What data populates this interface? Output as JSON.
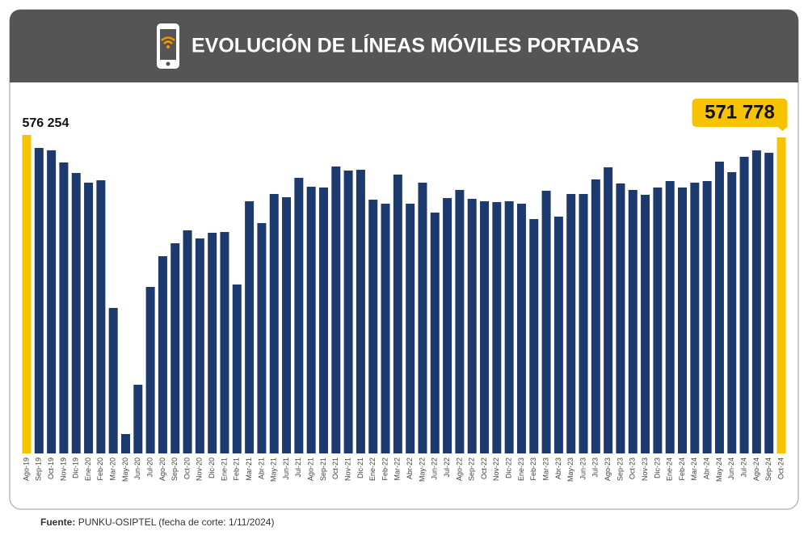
{
  "chart_data": {
    "type": "bar",
    "title": "EVOLUCIÓN DE LÍNEAS MÓVILES PORTADAS",
    "categories": [
      "Ago-19",
      "Sep-19",
      "Oct-19",
      "Nov-19",
      "Dic-19",
      "Ene-20",
      "Feb-20",
      "Mar-20",
      "May-20",
      "Jun-20",
      "Jul-20",
      "Ago-20",
      "Sep-20",
      "Oct-20",
      "Nov-20",
      "Dic-20",
      "Ene-21",
      "Feb-21",
      "Mar-21",
      "Abr-21",
      "May-21",
      "Jun-21",
      "Jul-21",
      "Ago-21",
      "Sep-21",
      "Oct-21",
      "Nov-21",
      "Dic-21",
      "Ene-22",
      "Feb-22",
      "Mar-22",
      "Abr-22",
      "May-22",
      "Jun-22",
      "Jul-22",
      "Ago-22",
      "Sep-22",
      "Oct-22",
      "Nov-22",
      "Dic-22",
      "Ene-23",
      "Feb-23",
      "Mar-23",
      "Abr-23",
      "May-23",
      "Jun-23",
      "Jul-23",
      "Ago-23",
      "Sep-23",
      "Oct-23",
      "Nov-23",
      "Dic-23",
      "Ene-24",
      "Feb-24",
      "Mar-24",
      "Abr-24",
      "May-24",
      "Jun-24",
      "Jul-24",
      "Ago-24",
      "Sep-24",
      "Oct-24"
    ],
    "values": [
      576254,
      552800,
      548400,
      526500,
      507500,
      490000,
      494300,
      263300,
      35100,
      124300,
      301300,
      356900,
      380300,
      403700,
      389000,
      399300,
      400700,
      305700,
      456300,
      416800,
      469500,
      463600,
      498700,
      482600,
      481200,
      519200,
      511900,
      513300,
      459200,
      451900,
      504600,
      451900,
      490000,
      435800,
      462100,
      476800,
      460700,
      456300,
      454800,
      456300,
      451900,
      424100,
      475300,
      428500,
      469500,
      469500,
      495800,
      517700,
      488500,
      476800,
      468000,
      481200,
      492900,
      481200,
      490000,
      492900,
      528000,
      509000,
      536800,
      548400,
      544000,
      571778
    ],
    "value_labels": [
      "576 254",
      null,
      null,
      null,
      null,
      null,
      null,
      null,
      null,
      null,
      null,
      null,
      null,
      null,
      null,
      null,
      null,
      null,
      null,
      null,
      null,
      null,
      null,
      null,
      null,
      null,
      null,
      null,
      null,
      null,
      null,
      null,
      null,
      null,
      null,
      null,
      null,
      null,
      null,
      null,
      null,
      null,
      null,
      null,
      null,
      null,
      null,
      null,
      null,
      null,
      null,
      null,
      null,
      null,
      null,
      null,
      null,
      null,
      null,
      null,
      null,
      "571 778"
    ],
    "color": "#1d3a6e",
    "highlight_color": "#f7c200",
    "source": {
      "label": "Fuente:",
      "text": "PUNKU-OSIPTEL (fecha de corte: 1/11/2024)"
    }
  }
}
